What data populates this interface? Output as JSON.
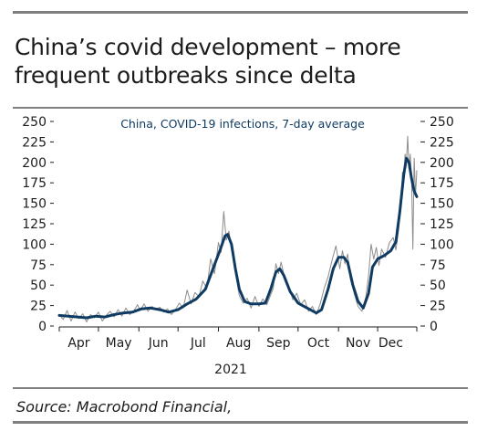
{
  "headline": "China’s covid development – more frequent outbreaks since delta",
  "source": "Source: Macrobond Financial,",
  "chart_data": {
    "type": "line",
    "title": "China, COVID-19 infections, 7-day average",
    "x_start": "2021-04-01",
    "x_end": "2021-12-31",
    "year_label": "2021",
    "xticks": [
      {
        "label": "Apr",
        "date": "2021-04-01"
      },
      {
        "label": "May",
        "date": "2021-05-01"
      },
      {
        "label": "Jun",
        "date": "2021-06-01"
      },
      {
        "label": "Jul",
        "date": "2021-07-01"
      },
      {
        "label": "Aug",
        "date": "2021-08-01"
      },
      {
        "label": "Sep",
        "date": "2021-09-01"
      },
      {
        "label": "Oct",
        "date": "2021-10-01"
      },
      {
        "label": "Nov",
        "date": "2021-11-01"
      },
      {
        "label": "Dec",
        "date": "2021-12-01"
      }
    ],
    "ylim": [
      0,
      250
    ],
    "yticks": [
      0,
      25,
      50,
      75,
      100,
      125,
      150,
      175,
      200,
      225,
      250
    ],
    "colors": {
      "average": "#0f3b63",
      "daily": "#8c8c8c"
    },
    "series": [
      {
        "kind": "daily",
        "points": [
          [
            "2021-04-01",
            14
          ],
          [
            "2021-04-04",
            8
          ],
          [
            "2021-04-07",
            19
          ],
          [
            "2021-04-10",
            6
          ],
          [
            "2021-04-13",
            17
          ],
          [
            "2021-04-16",
            9
          ],
          [
            "2021-04-19",
            15
          ],
          [
            "2021-04-22",
            5
          ],
          [
            "2021-04-25",
            14
          ],
          [
            "2021-04-28",
            10
          ],
          [
            "2021-05-01",
            17
          ],
          [
            "2021-05-04",
            6
          ],
          [
            "2021-05-07",
            13
          ],
          [
            "2021-05-10",
            18
          ],
          [
            "2021-05-13",
            11
          ],
          [
            "2021-05-16",
            20
          ],
          [
            "2021-05-19",
            12
          ],
          [
            "2021-05-22",
            22
          ],
          [
            "2021-05-25",
            14
          ],
          [
            "2021-05-28",
            18
          ],
          [
            "2021-05-31",
            26
          ],
          [
            "2021-06-02",
            19
          ],
          [
            "2021-06-05",
            27
          ],
          [
            "2021-06-08",
            18
          ],
          [
            "2021-06-11",
            24
          ],
          [
            "2021-06-14",
            20
          ],
          [
            "2021-06-17",
            23
          ],
          [
            "2021-06-20",
            17
          ],
          [
            "2021-06-23",
            21
          ],
          [
            "2021-06-26",
            14
          ],
          [
            "2021-06-29",
            20
          ],
          [
            "2021-07-02",
            28
          ],
          [
            "2021-07-05",
            22
          ],
          [
            "2021-07-08",
            44
          ],
          [
            "2021-07-11",
            27
          ],
          [
            "2021-07-14",
            41
          ],
          [
            "2021-07-17",
            36
          ],
          [
            "2021-07-20",
            55
          ],
          [
            "2021-07-23",
            46
          ],
          [
            "2021-07-26",
            82
          ],
          [
            "2021-07-29",
            64
          ],
          [
            "2021-08-01",
            102
          ],
          [
            "2021-08-03",
            90
          ],
          [
            "2021-08-05",
            140
          ],
          [
            "2021-08-07",
            105
          ],
          [
            "2021-08-09",
            116
          ],
          [
            "2021-08-11",
            95
          ],
          [
            "2021-08-13",
            83
          ],
          [
            "2021-08-15",
            56
          ],
          [
            "2021-08-17",
            37
          ],
          [
            "2021-08-20",
            28
          ],
          [
            "2021-08-23",
            34
          ],
          [
            "2021-08-26",
            22
          ],
          [
            "2021-08-29",
            36
          ],
          [
            "2021-09-01",
            24
          ],
          [
            "2021-09-04",
            33
          ],
          [
            "2021-09-07",
            26
          ],
          [
            "2021-09-10",
            38
          ],
          [
            "2021-09-12",
            46
          ],
          [
            "2021-09-14",
            76
          ],
          [
            "2021-09-16",
            64
          ],
          [
            "2021-09-18",
            78
          ],
          [
            "2021-09-21",
            57
          ],
          [
            "2021-09-24",
            48
          ],
          [
            "2021-09-27",
            32
          ],
          [
            "2021-09-30",
            40
          ],
          [
            "2021-10-03",
            26
          ],
          [
            "2021-10-06",
            32
          ],
          [
            "2021-10-09",
            18
          ],
          [
            "2021-10-12",
            24
          ],
          [
            "2021-10-15",
            14
          ],
          [
            "2021-10-18",
            27
          ],
          [
            "2021-10-21",
            46
          ],
          [
            "2021-10-24",
            60
          ],
          [
            "2021-10-27",
            80
          ],
          [
            "2021-10-30",
            98
          ],
          [
            "2021-11-02",
            70
          ],
          [
            "2021-11-04",
            92
          ],
          [
            "2021-11-06",
            76
          ],
          [
            "2021-11-08",
            88
          ],
          [
            "2021-11-10",
            58
          ],
          [
            "2021-11-13",
            40
          ],
          [
            "2021-11-16",
            24
          ],
          [
            "2021-11-19",
            18
          ],
          [
            "2021-11-22",
            36
          ],
          [
            "2021-11-24",
            62
          ],
          [
            "2021-11-26",
            100
          ],
          [
            "2021-11-28",
            82
          ],
          [
            "2021-11-30",
            96
          ],
          [
            "2021-12-02",
            74
          ],
          [
            "2021-12-04",
            94
          ],
          [
            "2021-12-07",
            84
          ],
          [
            "2021-12-10",
            102
          ],
          [
            "2021-12-13",
            108
          ],
          [
            "2021-12-15",
            93
          ],
          [
            "2021-12-17",
            118
          ],
          [
            "2021-12-19",
            150
          ],
          [
            "2021-12-20",
            188
          ],
          [
            "2021-12-21",
            175
          ],
          [
            "2021-12-22",
            210
          ],
          [
            "2021-12-23",
            200
          ],
          [
            "2021-12-24",
            232
          ],
          [
            "2021-12-25",
            192
          ],
          [
            "2021-12-26",
            210
          ],
          [
            "2021-12-27",
            178
          ],
          [
            "2021-12-28",
            94
          ],
          [
            "2021-12-29",
            205
          ],
          [
            "2021-12-30",
            160
          ],
          [
            "2021-12-31",
            190
          ]
        ]
      },
      {
        "kind": "average",
        "points": [
          [
            "2021-04-01",
            13
          ],
          [
            "2021-04-08",
            12
          ],
          [
            "2021-04-15",
            11
          ],
          [
            "2021-04-22",
            10
          ],
          [
            "2021-04-29",
            12
          ],
          [
            "2021-05-06",
            11
          ],
          [
            "2021-05-13",
            14
          ],
          [
            "2021-05-20",
            16
          ],
          [
            "2021-05-27",
            17
          ],
          [
            "2021-06-03",
            21
          ],
          [
            "2021-06-10",
            22
          ],
          [
            "2021-06-17",
            20
          ],
          [
            "2021-06-24",
            17
          ],
          [
            "2021-07-01",
            20
          ],
          [
            "2021-07-08",
            27
          ],
          [
            "2021-07-15",
            33
          ],
          [
            "2021-07-22",
            45
          ],
          [
            "2021-07-29",
            75
          ],
          [
            "2021-08-02",
            92
          ],
          [
            "2021-08-06",
            110
          ],
          [
            "2021-08-08",
            112
          ],
          [
            "2021-08-11",
            100
          ],
          [
            "2021-08-14",
            70
          ],
          [
            "2021-08-17",
            45
          ],
          [
            "2021-08-21",
            30
          ],
          [
            "2021-08-26",
            27
          ],
          [
            "2021-09-01",
            27
          ],
          [
            "2021-09-06",
            28
          ],
          [
            "2021-09-10",
            45
          ],
          [
            "2021-09-14",
            66
          ],
          [
            "2021-09-17",
            70
          ],
          [
            "2021-09-20",
            62
          ],
          [
            "2021-09-25",
            42
          ],
          [
            "2021-10-01",
            28
          ],
          [
            "2021-10-08",
            22
          ],
          [
            "2021-10-15",
            16
          ],
          [
            "2021-10-19",
            20
          ],
          [
            "2021-10-24",
            45
          ],
          [
            "2021-10-28",
            70
          ],
          [
            "2021-11-01",
            84
          ],
          [
            "2021-11-05",
            84
          ],
          [
            "2021-11-08",
            78
          ],
          [
            "2021-11-12",
            50
          ],
          [
            "2021-11-16",
            30
          ],
          [
            "2021-11-20",
            22
          ],
          [
            "2021-11-24",
            40
          ],
          [
            "2021-11-27",
            72
          ],
          [
            "2021-12-01",
            82
          ],
          [
            "2021-12-06",
            86
          ],
          [
            "2021-12-11",
            92
          ],
          [
            "2021-12-15",
            103
          ],
          [
            "2021-12-18",
            140
          ],
          [
            "2021-12-21",
            185
          ],
          [
            "2021-12-23",
            205
          ],
          [
            "2021-12-25",
            200
          ],
          [
            "2021-12-27",
            180
          ],
          [
            "2021-12-29",
            165
          ],
          [
            "2021-12-31",
            158
          ]
        ]
      }
    ]
  }
}
